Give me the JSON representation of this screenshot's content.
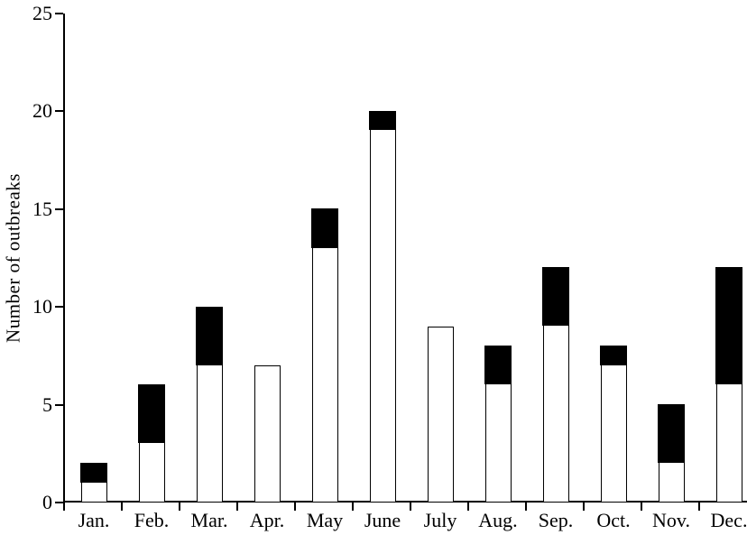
{
  "figure": {
    "background_color": "#ffffff",
    "axis_color": "#000000",
    "bar_outline_color": "#000000",
    "bar_fill_bottom": "#ffffff",
    "bar_fill_top": "#000000"
  },
  "chart_data": {
    "type": "bar",
    "stacked": true,
    "title": "",
    "xlabel": "",
    "ylabel": "Number of outbreaks",
    "categories": [
      "Jan.",
      "Feb.",
      "Mar.",
      "Apr.",
      "May",
      "June",
      "July",
      "Aug.",
      "Sep.",
      "Oct.",
      "Nov.",
      "Dec."
    ],
    "series": [
      {
        "name": "white-segment",
        "color": "#ffffff",
        "values": [
          1,
          3,
          7,
          7,
          13,
          19,
          9,
          6,
          9,
          7,
          2,
          6
        ]
      },
      {
        "name": "black-segment",
        "color": "#000000",
        "values": [
          1,
          3,
          3,
          0,
          2,
          1,
          0,
          2,
          3,
          1,
          3,
          6
        ]
      }
    ],
    "totals": [
      2,
      6,
      10,
      7,
      15,
      20,
      9,
      8,
      12,
      8,
      5,
      12
    ],
    "ylim": [
      0,
      25
    ],
    "yticks": [
      0,
      5,
      10,
      15,
      20,
      25
    ],
    "grid": false,
    "legend": "none"
  }
}
